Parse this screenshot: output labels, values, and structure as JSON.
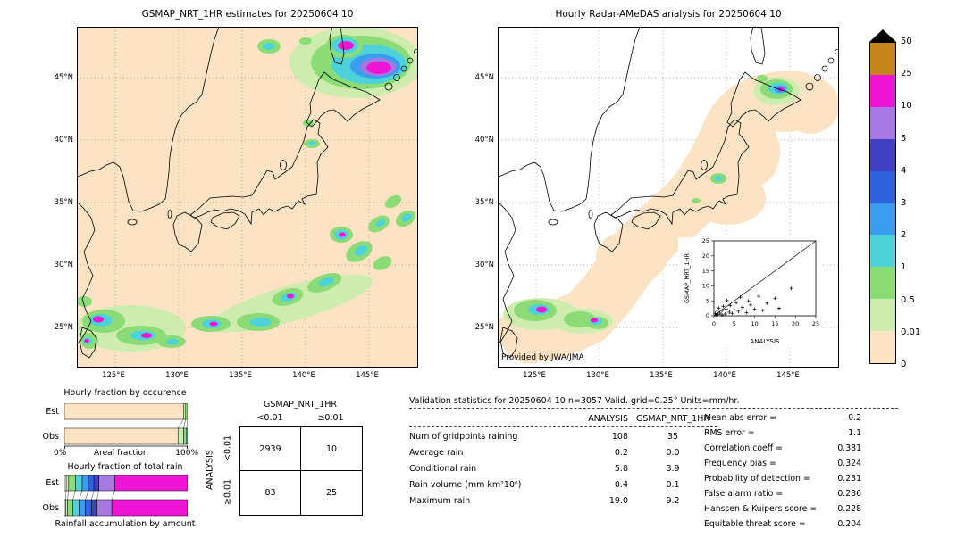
{
  "left_map": {
    "title": "GSMAP_NRT_1HR estimates for 20250604 10",
    "lat_ticks": [
      "45°N",
      "40°N",
      "35°N",
      "30°N",
      "25°N"
    ],
    "lon_ticks": [
      "125°E",
      "130°E",
      "135°E",
      "140°E",
      "145°E"
    ]
  },
  "right_map": {
    "title": "Hourly Radar-AMeDAS analysis for 20250604 10",
    "lat_ticks": [
      "45°N",
      "40°N",
      "35°N",
      "30°N",
      "25°N"
    ],
    "lon_ticks": [
      "125°E",
      "130°E",
      "135°E",
      "140°E",
      "145°E"
    ],
    "credit": "Provided by JWA/JMA",
    "inset": {
      "xlabel": "ANALYSIS",
      "ylabel": "GSMAP_NRT_1HR",
      "x_ticks": [
        0,
        5,
        10,
        15,
        20,
        25
      ],
      "y_ticks": [
        0,
        5,
        10,
        15,
        20,
        25
      ]
    }
  },
  "colorbar": {
    "labels_top_down": [
      "50",
      "25",
      "10",
      "5",
      "4",
      "3",
      "2",
      "1",
      "0.5",
      "0.01",
      "0"
    ],
    "colors_top_down": [
      "#c9861f",
      "#ef15d4",
      "#a678e2",
      "#4440c6",
      "#2f62dd",
      "#3b9df0",
      "#4ed2da",
      "#8bdc76",
      "#cdecae",
      "#fbe3c4"
    ],
    "over_color": "#000000"
  },
  "occurrence": {
    "title": "Hourly fraction by occurence",
    "row_labels": [
      "Est",
      "Obs"
    ],
    "x_min_label": "0%",
    "xlabel": "Areal fraction",
    "x_max_label": "100%",
    "est_segments": [
      {
        "color": "#fbe3c4",
        "pct": 96.6
      },
      {
        "color": "#cdecae",
        "pct": 1.8
      },
      {
        "color": "#8bdc76",
        "pct": 1.6
      }
    ],
    "obs_segments": [
      {
        "color": "#fbe3c4",
        "pct": 92.2
      },
      {
        "color": "#cdecae",
        "pct": 4.6
      },
      {
        "color": "#8bdc76",
        "pct": 2.4
      },
      {
        "color": "#4ed2da",
        "pct": 0.8
      }
    ]
  },
  "total_rain": {
    "title": "Hourly fraction of total rain",
    "row_labels": [
      "Est",
      "Obs"
    ],
    "caption": "Rainfall accumulation by amount",
    "est_segments": [
      {
        "color": "#ffffff",
        "pct": 1.5
      },
      {
        "color": "#cdecae",
        "pct": 2
      },
      {
        "color": "#8bdc76",
        "pct": 5.5
      },
      {
        "color": "#4ed2da",
        "pct": 5.5
      },
      {
        "color": "#3b9df0",
        "pct": 5
      },
      {
        "color": "#2f62dd",
        "pct": 4.5
      },
      {
        "color": "#4440c6",
        "pct": 4
      },
      {
        "color": "#a678e2",
        "pct": 13
      },
      {
        "color": "#ef15d4",
        "pct": 59
      }
    ],
    "obs_segments": [
      {
        "color": "#ffffff",
        "pct": 1
      },
      {
        "color": "#cdecae",
        "pct": 1.5
      },
      {
        "color": "#8bdc76",
        "pct": 4.5
      },
      {
        "color": "#4ed2da",
        "pct": 5
      },
      {
        "color": "#3b9df0",
        "pct": 5
      },
      {
        "color": "#2f62dd",
        "pct": 5
      },
      {
        "color": "#4440c6",
        "pct": 4.5
      },
      {
        "color": "#a678e2",
        "pct": 12
      },
      {
        "color": "#ef15d4",
        "pct": 61.5
      }
    ]
  },
  "contingency": {
    "col_group_label": "GSMAP_NRT_1HR",
    "row_group_label": "ANALYSIS",
    "col_headers": [
      "<0.01",
      "≥0.01"
    ],
    "row_headers": [
      "<0.01",
      "≥0.01"
    ],
    "cells": [
      [
        "2939",
        "10"
      ],
      [
        "83",
        "25"
      ]
    ]
  },
  "stats": {
    "title": "Validation statistics for 20250604 10  n=3057 Valid. grid=0.25° Units=mm/hr.",
    "col_headers": [
      "ANALYSIS",
      "GSMAP_NRT_1HR"
    ],
    "rows": [
      {
        "label": "Num of gridpoints raining",
        "analysis": "108",
        "gsmap": "35"
      },
      {
        "label": "Average rain",
        "analysis": "0.2",
        "gsmap": "0.0"
      },
      {
        "label": "Conditional rain",
        "analysis": "5.8",
        "gsmap": "3.9"
      },
      {
        "label": "Rain volume (mm km²10⁶)",
        "analysis": "0.4",
        "gsmap": "0.1"
      },
      {
        "label": "Maximum rain",
        "analysis": "19.0",
        "gsmap": "9.2"
      }
    ],
    "side": [
      {
        "label": "Mean abs error =",
        "value": "0.2"
      },
      {
        "label": "RMS error =",
        "value": "1.1"
      },
      {
        "label": "Correlation coeff =",
        "value": "0.381"
      },
      {
        "label": "Frequency bias =",
        "value": "0.324"
      },
      {
        "label": "Probability of detection =",
        "value": "0.231"
      },
      {
        "label": "False alarm ratio =",
        "value": "0.286"
      },
      {
        "label": "Hanssen & Kuipers score =",
        "value": "0.228"
      },
      {
        "label": "Equitable threat score =",
        "value": "0.204"
      }
    ]
  },
  "chart_data": [
    {
      "type": "heatmap",
      "title": "GSMAP_NRT_1HR estimates for 20250604 10",
      "x_ticks": [
        "125°E",
        "130°E",
        "135°E",
        "140°E",
        "145°E"
      ],
      "y_ticks": [
        "25°N",
        "30°N",
        "35°N",
        "40°N",
        "45°N"
      ],
      "colorbar_levels": [
        0,
        0.01,
        0.5,
        1,
        2,
        3,
        4,
        5,
        10,
        25,
        50
      ],
      "units": "mm/hr"
    },
    {
      "type": "heatmap",
      "title": "Hourly Radar-AMeDAS analysis for 20250604 10",
      "x_ticks": [
        "125°E",
        "130°E",
        "135°E",
        "140°E",
        "145°E"
      ],
      "y_ticks": [
        "25°N",
        "30°N",
        "35°N",
        "40°N",
        "45°N"
      ],
      "colorbar_levels": [
        0,
        0.01,
        0.5,
        1,
        2,
        3,
        4,
        5,
        10,
        25,
        50
      ],
      "units": "mm/hr",
      "annotation": "Provided by JWA/JMA"
    },
    {
      "type": "scatter",
      "xlabel": "ANALYSIS",
      "ylabel": "GSMAP_NRT_1HR",
      "xlim": [
        0,
        25
      ],
      "ylim": [
        0,
        25
      ],
      "x_ticks": [
        0,
        5,
        10,
        15,
        20,
        25
      ],
      "y_ticks": [
        0,
        5,
        10,
        15,
        20,
        25
      ],
      "diagonal": true,
      "points": [
        [
          0.3,
          0.8
        ],
        [
          0.5,
          0.2
        ],
        [
          0.8,
          1.5
        ],
        [
          1,
          0.4
        ],
        [
          1.2,
          2.6
        ],
        [
          1.5,
          0.9
        ],
        [
          2,
          0.3
        ],
        [
          2,
          1.8
        ],
        [
          2.3,
          3.2
        ],
        [
          2.8,
          0.6
        ],
        [
          3,
          2.2
        ],
        [
          3.2,
          5.1
        ],
        [
          3.8,
          1.2
        ],
        [
          4,
          3.5
        ],
        [
          4.5,
          0.8
        ],
        [
          5,
          2
        ],
        [
          5.5,
          4.4
        ],
        [
          6,
          1.5
        ],
        [
          6.5,
          6.2
        ],
        [
          7,
          2.8
        ],
        [
          8,
          1
        ],
        [
          8.5,
          5
        ],
        [
          9,
          3.6
        ],
        [
          10,
          2.2
        ],
        [
          11,
          6.5
        ],
        [
          12,
          1.8
        ],
        [
          13,
          4.2
        ],
        [
          15,
          5.8
        ],
        [
          16,
          2.5
        ],
        [
          19,
          9.2
        ]
      ]
    },
    {
      "type": "bar",
      "title": "Hourly fraction by occurence",
      "orientation": "horizontal",
      "stacked": true,
      "categories": [
        "Est",
        "Obs"
      ],
      "xlabel": "Areal fraction",
      "xlim": [
        "0%",
        "100%"
      ],
      "series": [
        {
          "name": "Est",
          "segment_pcts": [
            96.6,
            1.8,
            1.6
          ]
        },
        {
          "name": "Obs",
          "segment_pcts": [
            92.2,
            4.6,
            2.4,
            0.8
          ]
        }
      ]
    },
    {
      "type": "bar",
      "title": "Hourly fraction of total rain",
      "orientation": "horizontal",
      "stacked": true,
      "categories": [
        "Est",
        "Obs"
      ],
      "caption": "Rainfall accumulation by amount",
      "series": [
        {
          "name": "Est",
          "segment_pcts": [
            1.5,
            2,
            5.5,
            5.5,
            5,
            4.5,
            4,
            13,
            59
          ]
        },
        {
          "name": "Obs",
          "segment_pcts": [
            1,
            1.5,
            4.5,
            5,
            5,
            5,
            4.5,
            12,
            61.5
          ]
        }
      ]
    },
    {
      "type": "table",
      "title": "GSMAP_NRT_1HR × ANALYSIS contingency",
      "columns": [
        "<0.01",
        "≥0.01"
      ],
      "rows": [
        "<0.01",
        "≥0.01"
      ],
      "values": [
        [
          2939,
          10
        ],
        [
          83,
          25
        ]
      ]
    },
    {
      "type": "table",
      "title": "Validation statistics for 20250604 10  n=3057 Valid. grid=0.25° Units=mm/hr.",
      "columns": [
        "ANALYSIS",
        "GSMAP_NRT_1HR"
      ],
      "rows": [
        [
          "Num of gridpoints raining",
          108,
          35
        ],
        [
          "Average rain",
          0.2,
          0.0
        ],
        [
          "Conditional rain",
          5.8,
          3.9
        ],
        [
          "Rain volume (mm km²10⁶)",
          0.4,
          0.1
        ],
        [
          "Maximum rain",
          19.0,
          9.2
        ]
      ],
      "scores": {
        "Mean abs error": 0.2,
        "RMS error": 1.1,
        "Correlation coeff": 0.381,
        "Frequency bias": 0.324,
        "Probability of detection": 0.231,
        "False alarm ratio": 0.286,
        "Hanssen & Kuipers score": 0.228,
        "Equitable threat score": 0.204
      }
    }
  ]
}
